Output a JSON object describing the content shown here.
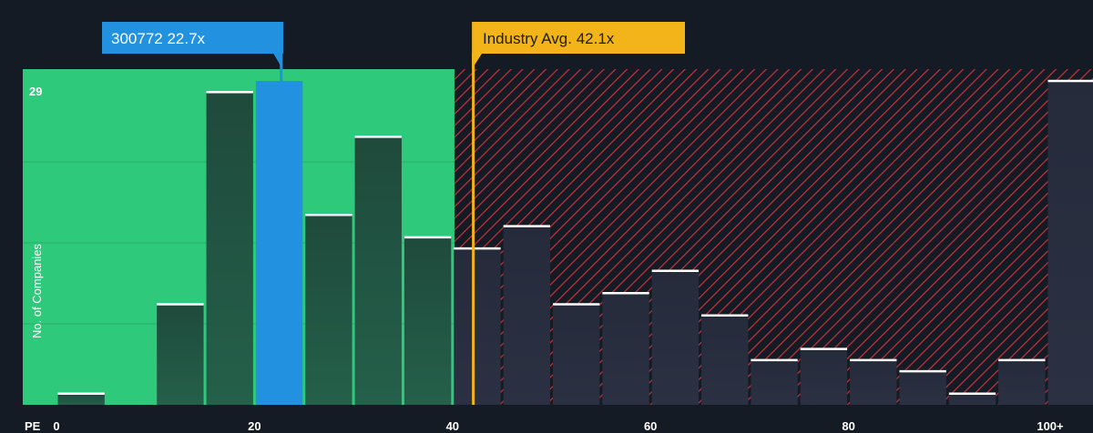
{
  "chart_data": {
    "type": "bar",
    "x_axis_label": "PE",
    "y_axis_label": "No. of Companies",
    "y_max_label": "29",
    "ylim": [
      0,
      29
    ],
    "xlim": [
      0,
      102.5
    ],
    "x_ticks": [
      {
        "value": 0,
        "label": "0"
      },
      {
        "value": 20,
        "label": "20"
      },
      {
        "value": 40,
        "label": "40"
      },
      {
        "value": 60,
        "label": "60"
      },
      {
        "value": 80,
        "label": "80"
      },
      {
        "value": 100,
        "label": "100+"
      }
    ],
    "bins": [
      {
        "start": 0,
        "end": 5,
        "count": 1
      },
      {
        "start": 5,
        "end": 10,
        "count": 0
      },
      {
        "start": 10,
        "end": 15,
        "count": 9
      },
      {
        "start": 15,
        "end": 20,
        "count": 28
      },
      {
        "start": 20,
        "end": 25,
        "count": 29
      },
      {
        "start": 25,
        "end": 30,
        "count": 17
      },
      {
        "start": 30,
        "end": 35,
        "count": 24
      },
      {
        "start": 35,
        "end": 40,
        "count": 15
      },
      {
        "start": 40,
        "end": 45,
        "count": 14
      },
      {
        "start": 45,
        "end": 50,
        "count": 16
      },
      {
        "start": 50,
        "end": 55,
        "count": 9
      },
      {
        "start": 55,
        "end": 60,
        "count": 10
      },
      {
        "start": 60,
        "end": 65,
        "count": 12
      },
      {
        "start": 65,
        "end": 70,
        "count": 8
      },
      {
        "start": 70,
        "end": 75,
        "count": 4
      },
      {
        "start": 75,
        "end": 80,
        "count": 5
      },
      {
        "start": 80,
        "end": 85,
        "count": 4
      },
      {
        "start": 85,
        "end": 90,
        "count": 3
      },
      {
        "start": 90,
        "end": 95,
        "count": 1
      },
      {
        "start": 95,
        "end": 100,
        "count": 4
      },
      {
        "start": 100,
        "end": 105,
        "count": 29
      }
    ],
    "company": {
      "label": "300772 22.7x",
      "value": 22.7,
      "color": "#2291e0"
    },
    "industry": {
      "label": "Industry Avg. 42.1x",
      "value": 42.1,
      "color": "#f2b418"
    },
    "fair_zone": {
      "start": 0,
      "end": 40.2,
      "color": "#2ec97a"
    },
    "expensive_zone": {
      "start": 40.2,
      "color": "#e0343f"
    },
    "grid": true
  }
}
